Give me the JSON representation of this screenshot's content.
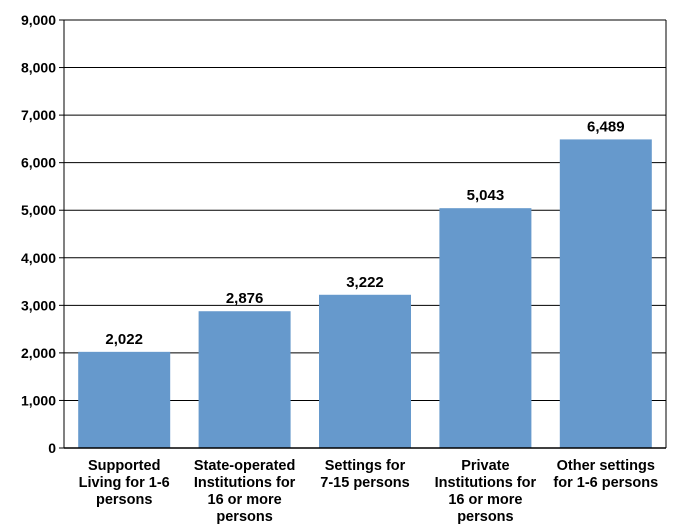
{
  "chart_data": {
    "type": "bar",
    "categories": [
      "Supported Living for 1-6 persons",
      "State-operated Institutions for 16 or more persons",
      "Settings for 7-15 persons",
      "Private Institutions for 16 or more persons",
      "Other settings for 1-6 persons"
    ],
    "category_lines": [
      [
        "Supported",
        "Living for 1-6",
        "persons"
      ],
      [
        "State-operated",
        "Institutions for",
        "16 or more",
        "persons"
      ],
      [
        "Settings for",
        "7-15 persons"
      ],
      [
        "Private",
        "Institutions for",
        "16 or more",
        "persons"
      ],
      [
        "Other settings",
        "for 1-6 persons"
      ]
    ],
    "values": [
      2022,
      2876,
      3222,
      5043,
      6489
    ],
    "value_labels": [
      "2,022",
      "2,876",
      "3,222",
      "5,043",
      "6,489"
    ],
    "ylim": [
      0,
      9000
    ],
    "yticks": [
      0,
      1000,
      2000,
      3000,
      4000,
      5000,
      6000,
      7000,
      8000,
      9000
    ],
    "ytick_labels": [
      "0",
      "1,000",
      "2,000",
      "3,000",
      "4,000",
      "5,000",
      "6,000",
      "7,000",
      "8,000",
      "9,000"
    ],
    "grid": true,
    "colors": {
      "bar": "#6699cc",
      "grid": "#000000",
      "axis": "#000000"
    }
  }
}
